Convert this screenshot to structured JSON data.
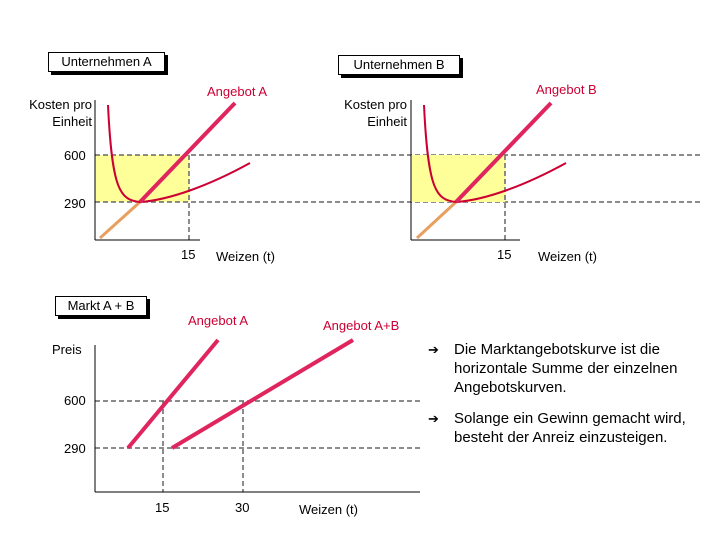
{
  "firm_a": {
    "box_title": "Unternehmen A",
    "y_axis_label": "Kosten pro Einheit",
    "x_axis_label": "Weizen (t)",
    "supply_label": "Angebot A",
    "price_ticks": [
      "600",
      "290"
    ],
    "quantity_tick": "15"
  },
  "firm_b": {
    "box_title": "Unternehmen B",
    "y_axis_label": "Kosten pro Einheit",
    "x_axis_label": "Weizen (t)",
    "supply_label": "Angebot B",
    "quantity_tick": "15"
  },
  "market": {
    "box_title": "Markt A + B",
    "y_axis_label": "Preis",
    "x_axis_label": "Weizen (t)",
    "supply_label_a": "Angebot A",
    "supply_label_ab": "Angebot A+B",
    "price_ticks": [
      "600",
      "290"
    ],
    "quantity_ticks": [
      "15",
      "30"
    ]
  },
  "bullets": [
    {
      "icon": "arrow-right-icon",
      "text": "Die Marktangebotskurve ist die horizontale Summe der einzelnen Angebotskurven."
    },
    {
      "icon": "arrow-right-icon",
      "text": "Solange ein Gewinn gemacht wird, besteht der Anreiz einzusteigen."
    }
  ],
  "colors": {
    "supply_line": "#e0245e",
    "cost_curve": "#cc0033",
    "lower_segment": "#e8a060",
    "profit_area": "#ffff99",
    "label_red": "#cc0033"
  }
}
